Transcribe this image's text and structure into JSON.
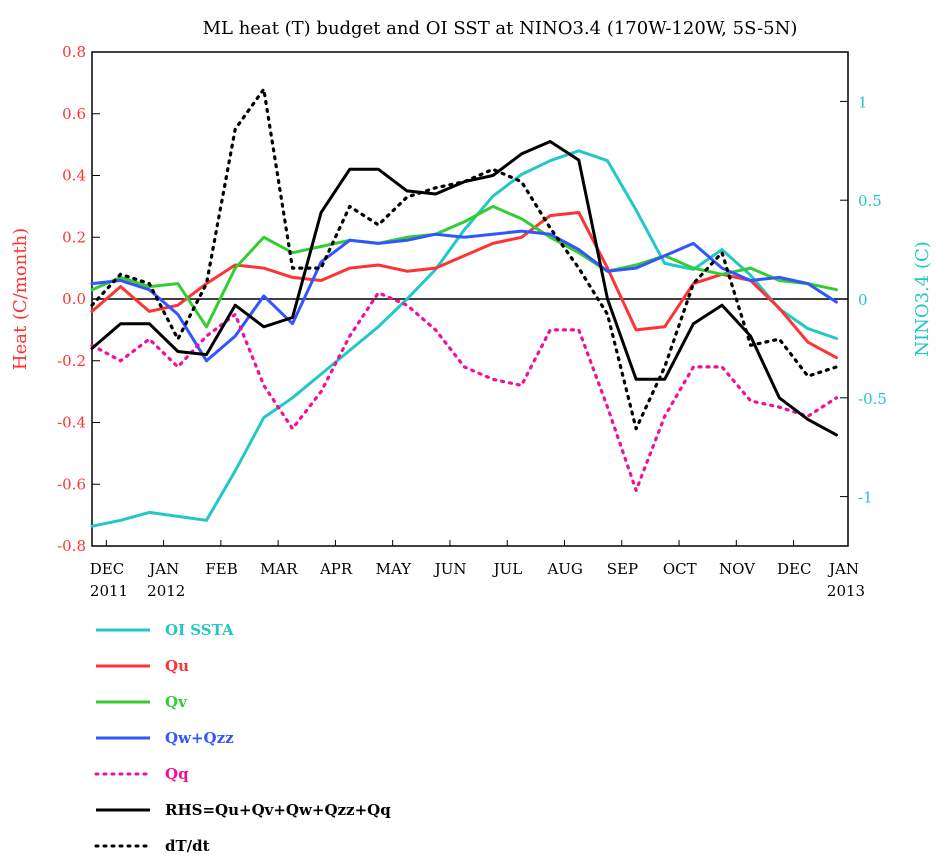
{
  "chart_data": {
    "type": "line",
    "title": "ML heat (T) budget and OI SST at NINO3.4 (170W-120W, 5S-5N)",
    "ylabel": "Heat (C/month)",
    "y2label": "NINO3.4 (C)",
    "ylim": [
      -0.8,
      0.8
    ],
    "y2lim": [
      -1.25,
      1.25
    ],
    "xlim": [
      0,
      13.2
    ],
    "y_ticks": [
      "-0.8",
      "-0.6",
      "-0.4",
      "-0.2",
      "0.0",
      "0.2",
      "0.4",
      "0.6",
      "0.8"
    ],
    "y2_ticks": [
      "-1",
      "-0.5",
      "0",
      "0.5",
      "1"
    ],
    "x_ticks": [
      {
        "pos": 0.25,
        "label": "DEC",
        "sub": "2011"
      },
      {
        "pos": 1.25,
        "label": "JAN",
        "sub": "2012"
      },
      {
        "pos": 2.25,
        "label": "FEB",
        "sub": ""
      },
      {
        "pos": 3.25,
        "label": "MAR",
        "sub": ""
      },
      {
        "pos": 4.25,
        "label": "APR",
        "sub": ""
      },
      {
        "pos": 5.25,
        "label": "MAY",
        "sub": ""
      },
      {
        "pos": 6.25,
        "label": "JUN",
        "sub": ""
      },
      {
        "pos": 7.25,
        "label": "JUL",
        "sub": ""
      },
      {
        "pos": 8.25,
        "label": "AUG",
        "sub": ""
      },
      {
        "pos": 9.25,
        "label": "SEP",
        "sub": ""
      },
      {
        "pos": 10.25,
        "label": "OCT",
        "sub": ""
      },
      {
        "pos": 11.25,
        "label": "NOV",
        "sub": ""
      },
      {
        "pos": 12.25,
        "label": "DEC",
        "sub": ""
      },
      {
        "pos": 13.25,
        "label": "JAN",
        "sub": "2013"
      }
    ],
    "x": [
      0,
      0.5,
      1,
      1.5,
      2,
      2.5,
      3,
      3.5,
      4,
      4.5,
      5,
      5.5,
      6,
      6.5,
      7,
      7.5,
      8,
      8.5,
      9,
      9.5,
      10,
      10.5,
      11,
      11.5,
      12,
      12.5,
      13
    ],
    "series": [
      {
        "name": "OI SSTA",
        "color": "#22c7c7",
        "dash": "solid",
        "axis": "right",
        "values": [
          -1.15,
          -1.12,
          -1.08,
          -1.1,
          -1.12,
          -0.87,
          -0.6,
          -0.5,
          -0.38,
          -0.26,
          -0.14,
          0.0,
          0.15,
          0.35,
          0.52,
          0.63,
          0.7,
          0.75,
          0.7,
          0.45,
          0.18,
          0.15,
          0.25,
          0.12,
          -0.05,
          -0.15,
          -0.2
        ]
      },
      {
        "name": "Qu",
        "color": "#ff3333",
        "dash": "solid",
        "axis": "left",
        "values": [
          -0.04,
          0.04,
          -0.04,
          -0.02,
          0.05,
          0.11,
          0.1,
          0.07,
          0.06,
          0.1,
          0.11,
          0.09,
          0.1,
          0.14,
          0.18,
          0.2,
          0.27,
          0.28,
          0.1,
          -0.1,
          -0.09,
          0.05,
          0.08,
          0.06,
          -0.03,
          -0.14,
          -0.19
        ]
      },
      {
        "name": "Qv",
        "color": "#33cc33",
        "dash": "solid",
        "axis": "left",
        "values": [
          0.03,
          0.07,
          0.04,
          0.05,
          -0.09,
          0.1,
          0.2,
          0.15,
          0.17,
          0.19,
          0.18,
          0.2,
          0.21,
          0.25,
          0.3,
          0.26,
          0.2,
          0.15,
          0.09,
          0.11,
          0.14,
          0.1,
          0.08,
          0.1,
          0.06,
          0.05,
          0.03
        ]
      },
      {
        "name": "Qw+Qzz",
        "color": "#3355ff",
        "dash": "solid",
        "axis": "left",
        "values": [
          0.05,
          0.06,
          0.03,
          -0.05,
          -0.2,
          -0.12,
          0.01,
          -0.08,
          0.12,
          0.19,
          0.18,
          0.19,
          0.21,
          0.2,
          0.21,
          0.22,
          0.21,
          0.16,
          0.09,
          0.1,
          0.14,
          0.18,
          0.1,
          0.06,
          0.07,
          0.05,
          -0.01
        ]
      },
      {
        "name": "Qq",
        "color": "#ee1199",
        "dash": "dotted",
        "axis": "left",
        "values": [
          -0.15,
          -0.2,
          -0.13,
          -0.22,
          -0.12,
          -0.05,
          -0.28,
          -0.42,
          -0.3,
          -0.12,
          0.02,
          -0.02,
          -0.1,
          -0.22,
          -0.26,
          -0.28,
          -0.1,
          -0.1,
          -0.35,
          -0.62,
          -0.38,
          -0.22,
          -0.22,
          -0.33,
          -0.35,
          -0.38,
          -0.32
        ]
      },
      {
        "name": "RHS=Qu+Qv+Qw+Qzz+Qq",
        "color": "#000000",
        "dash": "solid",
        "axis": "left",
        "values": [
          -0.16,
          -0.08,
          -0.08,
          -0.17,
          -0.18,
          -0.02,
          -0.09,
          -0.06,
          0.28,
          0.42,
          0.42,
          0.35,
          0.34,
          0.38,
          0.4,
          0.47,
          0.51,
          0.45,
          0.0,
          -0.26,
          -0.26,
          -0.08,
          -0.02,
          -0.12,
          -0.32,
          -0.39,
          -0.44
        ]
      },
      {
        "name": "dT/dt",
        "color": "#000000",
        "dash": "dotted",
        "axis": "left",
        "values": [
          -0.02,
          0.08,
          0.05,
          -0.13,
          0.05,
          0.55,
          0.68,
          0.1,
          0.1,
          0.3,
          0.24,
          0.33,
          0.36,
          0.38,
          0.42,
          0.38,
          0.23,
          0.1,
          -0.05,
          -0.42,
          -0.22,
          0.05,
          0.15,
          -0.15,
          -0.13,
          -0.25,
          -0.22
        ]
      }
    ]
  }
}
